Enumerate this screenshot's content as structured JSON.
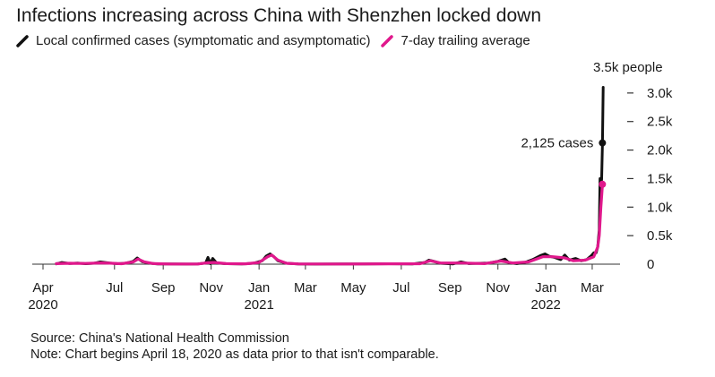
{
  "title": "Infections increasing across China with Shenzhen locked down",
  "legend": [
    {
      "label": "Local confirmed cases (symptomatic and asymptomatic)",
      "color": "#111111"
    },
    {
      "label": "7-day trailing average",
      "color": "#e0188c"
    }
  ],
  "notes": {
    "source": "Source: China's National Health Commission",
    "note": "Note: Chart begins April 18, 2020 as data prior to that isn't comparable."
  },
  "chart_data": {
    "type": "line",
    "unit_label": "3.5k people",
    "y_ticks": [
      {
        "value": 0,
        "label": "0"
      },
      {
        "value": 500,
        "label": "0.5k"
      },
      {
        "value": 1000,
        "label": "1.0k"
      },
      {
        "value": 1500,
        "label": "1.5k"
      },
      {
        "value": 2000,
        "label": "2.0k"
      },
      {
        "value": 2500,
        "label": "2.5k"
      },
      {
        "value": 3000,
        "label": "3.0k"
      }
    ],
    "ylim": [
      0,
      3500
    ],
    "xlim": [
      "2020-04-01",
      "2022-03-25"
    ],
    "x_ticks": [
      {
        "date": "2020-04-01",
        "label": "Apr",
        "year": "2020"
      },
      {
        "date": "2020-07-01",
        "label": "Jul"
      },
      {
        "date": "2020-09-01",
        "label": "Sep"
      },
      {
        "date": "2020-11-01",
        "label": "Nov"
      },
      {
        "date": "2021-01-01",
        "label": "Jan",
        "year": "2021"
      },
      {
        "date": "2021-03-01",
        "label": "Mar"
      },
      {
        "date": "2021-05-01",
        "label": "May"
      },
      {
        "date": "2021-07-01",
        "label": "Jul"
      },
      {
        "date": "2021-09-01",
        "label": "Sep"
      },
      {
        "date": "2021-11-01",
        "label": "Nov"
      },
      {
        "date": "2022-01-01",
        "label": "Jan",
        "year": "2022"
      },
      {
        "date": "2022-03-01",
        "label": "Mar"
      }
    ],
    "annotation": {
      "label": "2,125 cases",
      "date": "2022-03-14",
      "value": 2125
    },
    "series": [
      {
        "name": "Local confirmed cases (symptomatic and asymptomatic)",
        "color": "#111111",
        "points": [
          [
            "2020-04-18",
            5
          ],
          [
            "2020-04-25",
            30
          ],
          [
            "2020-05-05",
            12
          ],
          [
            "2020-05-15",
            20
          ],
          [
            "2020-05-25",
            8
          ],
          [
            "2020-06-05",
            15
          ],
          [
            "2020-06-13",
            40
          ],
          [
            "2020-06-25",
            20
          ],
          [
            "2020-07-05",
            8
          ],
          [
            "2020-07-15",
            15
          ],
          [
            "2020-07-25",
            50
          ],
          [
            "2020-07-30",
            110
          ],
          [
            "2020-08-05",
            45
          ],
          [
            "2020-08-15",
            15
          ],
          [
            "2020-08-25",
            5
          ],
          [
            "2020-09-10",
            3
          ],
          [
            "2020-10-01",
            2
          ],
          [
            "2020-10-15",
            5
          ],
          [
            "2020-10-25",
            20
          ],
          [
            "2020-10-28",
            120
          ],
          [
            "2020-10-31",
            10
          ],
          [
            "2020-11-03",
            100
          ],
          [
            "2020-11-08",
            20
          ],
          [
            "2020-11-20",
            8
          ],
          [
            "2020-12-10",
            5
          ],
          [
            "2020-12-25",
            15
          ],
          [
            "2021-01-05",
            60
          ],
          [
            "2021-01-10",
            140
          ],
          [
            "2021-01-15",
            180
          ],
          [
            "2021-01-20",
            130
          ],
          [
            "2021-01-25",
            60
          ],
          [
            "2021-02-05",
            15
          ],
          [
            "2021-02-20",
            3
          ],
          [
            "2021-03-15",
            2
          ],
          [
            "2021-04-15",
            3
          ],
          [
            "2021-05-15",
            5
          ],
          [
            "2021-06-15",
            8
          ],
          [
            "2021-07-15",
            4
          ],
          [
            "2021-07-31",
            30
          ],
          [
            "2021-08-05",
            70
          ],
          [
            "2021-08-10",
            55
          ],
          [
            "2021-08-20",
            15
          ],
          [
            "2021-09-05",
            5
          ],
          [
            "2021-09-15",
            40
          ],
          [
            "2021-09-25",
            10
          ],
          [
            "2021-10-20",
            20
          ],
          [
            "2021-11-01",
            50
          ],
          [
            "2021-11-10",
            90
          ],
          [
            "2021-11-15",
            25
          ],
          [
            "2021-11-25",
            10
          ],
          [
            "2021-12-05",
            30
          ],
          [
            "2021-12-15",
            80
          ],
          [
            "2021-12-25",
            150
          ],
          [
            "2021-12-31",
            180
          ],
          [
            "2022-01-05",
            140
          ],
          [
            "2022-01-12",
            120
          ],
          [
            "2022-01-20",
            80
          ],
          [
            "2022-01-25",
            160
          ],
          [
            "2022-01-31",
            70
          ],
          [
            "2022-02-08",
            100
          ],
          [
            "2022-02-15",
            60
          ],
          [
            "2022-02-22",
            80
          ],
          [
            "2022-02-28",
            150
          ],
          [
            "2022-03-03",
            200
          ],
          [
            "2022-03-06",
            200
          ],
          [
            "2022-03-08",
            300
          ],
          [
            "2022-03-10",
            600
          ],
          [
            "2022-03-11",
            1500
          ],
          [
            "2022-03-12",
            1300
          ],
          [
            "2022-03-13",
            1500
          ],
          [
            "2022-03-14",
            2125
          ],
          [
            "2022-03-15",
            3100
          ]
        ]
      },
      {
        "name": "7-day trailing average",
        "color": "#e0188c",
        "points": [
          [
            "2020-04-18",
            10
          ],
          [
            "2020-05-05",
            15
          ],
          [
            "2020-05-25",
            12
          ],
          [
            "2020-06-13",
            22
          ],
          [
            "2020-06-25",
            18
          ],
          [
            "2020-07-10",
            8
          ],
          [
            "2020-07-25",
            40
          ],
          [
            "2020-07-31",
            90
          ],
          [
            "2020-08-08",
            40
          ],
          [
            "2020-08-20",
            10
          ],
          [
            "2020-09-10",
            3
          ],
          [
            "2020-10-15",
            3
          ],
          [
            "2020-10-28",
            25
          ],
          [
            "2020-11-05",
            30
          ],
          [
            "2020-11-20",
            10
          ],
          [
            "2020-12-15",
            6
          ],
          [
            "2021-01-01",
            30
          ],
          [
            "2021-01-12",
            130
          ],
          [
            "2021-01-17",
            160
          ],
          [
            "2021-01-25",
            70
          ],
          [
            "2021-02-05",
            15
          ],
          [
            "2021-02-20",
            4
          ],
          [
            "2021-04-15",
            3
          ],
          [
            "2021-06-15",
            6
          ],
          [
            "2021-07-25",
            8
          ],
          [
            "2021-08-07",
            60
          ],
          [
            "2021-08-20",
            20
          ],
          [
            "2021-09-15",
            20
          ],
          [
            "2021-10-15",
            10
          ],
          [
            "2021-11-05",
            55
          ],
          [
            "2021-11-20",
            20
          ],
          [
            "2021-12-10",
            40
          ],
          [
            "2021-12-28",
            130
          ],
          [
            "2022-01-10",
            130
          ],
          [
            "2022-01-25",
            110
          ],
          [
            "2022-02-05",
            60
          ],
          [
            "2022-02-20",
            70
          ],
          [
            "2022-03-03",
            130
          ],
          [
            "2022-03-08",
            300
          ],
          [
            "2022-03-10",
            500
          ],
          [
            "2022-03-12",
            1000
          ],
          [
            "2022-03-14",
            1400
          ]
        ]
      }
    ]
  }
}
